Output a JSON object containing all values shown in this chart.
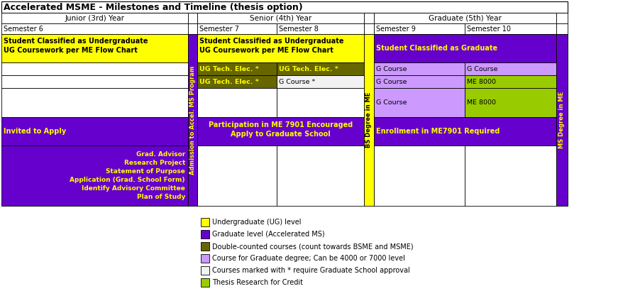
{
  "title": "Accelerated MSME - Milestones and Timeline (thesis option)",
  "colors": {
    "yellow": "#FFFF00",
    "purple": "#6600CC",
    "dark_olive": "#666600",
    "lavender": "#CC99FF",
    "white": "#FFFFFF",
    "lime_green": "#99CC00",
    "black": "#000000",
    "light_gray": "#F2F2F2"
  },
  "legend_items": [
    {
      "color": "#FFFF00",
      "label": "Undergraduate (UG) level"
    },
    {
      "color": "#6600CC",
      "label": "Graduate level (Accelerated MS)"
    },
    {
      "color": "#666600",
      "label": "Double-counted courses (count towards BSME and MSME)"
    },
    {
      "color": "#CC99FF",
      "label": "Course for Graduate degree; Can be 4000 or 7000 level"
    },
    {
      "color": "#F2F2F2",
      "label": "Courses marked with * require Graduate School approval"
    },
    {
      "color": "#99CC00",
      "label": "Thesis Research for Credit"
    }
  ]
}
